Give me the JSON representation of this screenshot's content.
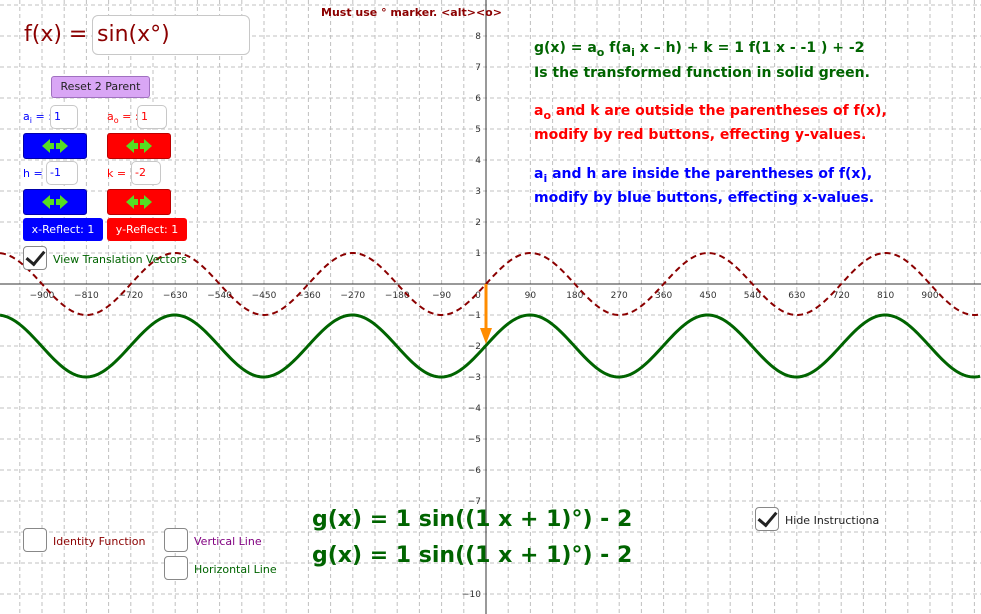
{
  "header": {
    "note": "Must use ° marker. <alt><o>"
  },
  "fx_input": {
    "label": "f(x) = :",
    "value": "sin(x°)"
  },
  "controls": {
    "reset_label": "Reset 2 Parent",
    "ai": {
      "label": "a",
      "sub": "i",
      "suffix": " = :",
      "value": "1"
    },
    "ao": {
      "label": "a",
      "sub": "o",
      "suffix": " = :",
      "value": "1"
    },
    "h": {
      "label": "h = :",
      "value": "-1"
    },
    "k": {
      "label": "k = :",
      "value": "-2"
    },
    "x_reflect_label": "x-Reflect: 1",
    "y_reflect_label": "y-Reflect: 1",
    "view_vectors_label": "View Translation Vectors",
    "view_vectors_checked": true
  },
  "info": {
    "line1_pre": "g(x) = a",
    "line1_sub_o": "o",
    "line1_mid": " f(a",
    "line1_sub_i": "i",
    "line1_post": "  x – h) + k  = 1 f(1 x - -1 ) + -2",
    "line2": "Is the transformed function in solid green.",
    "line3_pre": "a",
    "line3_sub": "o",
    "line3_post": " and k are outside the parentheses of f(x),",
    "line4": "modify by red buttons, effecting y-values.",
    "line5_pre": "a",
    "line5_sub": "i",
    "line5_post": " and h are inside the parentheses of f(x),",
    "line6": "modify by blue buttons, effecting x-values."
  },
  "equations": {
    "line1": "g(x) = 1 sin((1 x + 1)°) - 2",
    "line2": "g(x) = 1 sin((1 x + 1)°) - 2"
  },
  "bottom_checks": {
    "identity_label": "Identity Function",
    "vertical_label": "Vertical Line",
    "horizontal_label": "Horizontal Line",
    "hide_label": "Hide Instructiona",
    "hide_checked": true
  },
  "axes": {
    "x_ticks": [
      "−900",
      "−810",
      "−720",
      "−630",
      "−540",
      "−450",
      "−360",
      "−270",
      "−180",
      "−90",
      "0",
      "90",
      "180",
      "270",
      "360",
      "450",
      "540",
      "630",
      "720",
      "810",
      "900"
    ],
    "y_ticks": [
      "8",
      "7",
      "6",
      "5",
      "4",
      "3",
      "2",
      "1",
      "−1",
      "−2",
      "−3",
      "−4",
      "−5",
      "−6",
      "−7",
      "−10"
    ]
  },
  "colors": {
    "dark_red": "#8b0000",
    "green": "#006400",
    "red": "#ff0000",
    "blue": "#0000ff",
    "orange": "#ff8c00",
    "button_purple": "#d9a6f5"
  }
}
